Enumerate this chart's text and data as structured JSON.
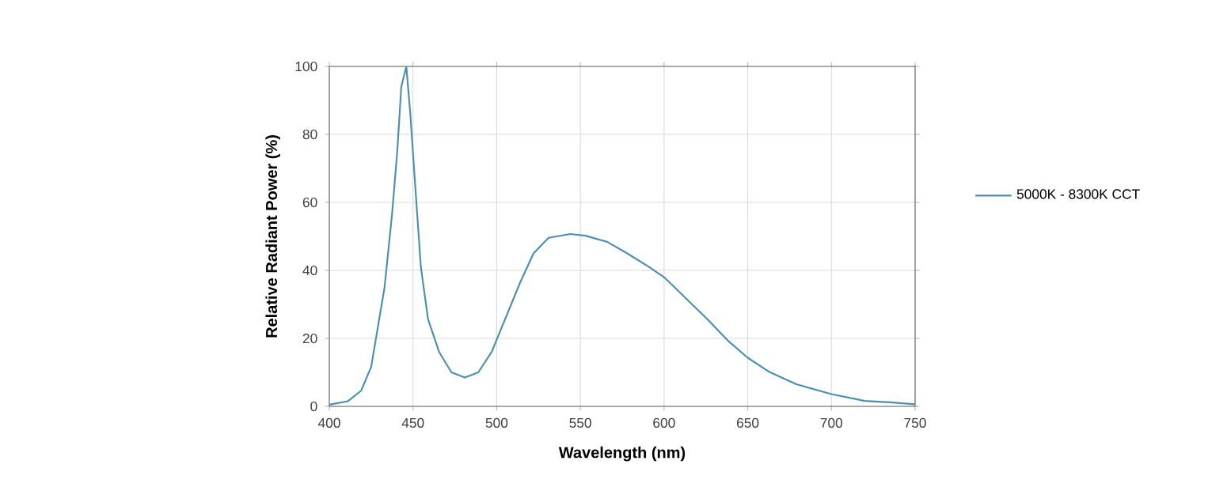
{
  "chart_data": {
    "type": "line",
    "xlabel": "Wavelength (nm)",
    "ylabel": "Relative Radiant Power (%)",
    "x": [
      400,
      411,
      419,
      425,
      433,
      437.5,
      440.6,
      443,
      446,
      448.4,
      451.6,
      454.7,
      459,
      465.6,
      473,
      481,
      489,
      497,
      505,
      514,
      522,
      531,
      544,
      553,
      566,
      578,
      591,
      600,
      613,
      626,
      638,
      650,
      663,
      679,
      700,
      720,
      735,
      750
    ],
    "series": [
      {
        "name": "5000K - 8300K CCT",
        "color": "#4a8fb0",
        "values": [
          0.5,
          1.5,
          4.6,
          11.6,
          35,
          56.6,
          75,
          94,
          100,
          86,
          63,
          41,
          25.6,
          16,
          10,
          8.5,
          10,
          16,
          25.6,
          36.4,
          45,
          49.6,
          50.7,
          50.2,
          48.4,
          45,
          41,
          38,
          31.8,
          25.6,
          19.4,
          14.3,
          10.1,
          6.5,
          3.6,
          1.6,
          1.2,
          0.6
        ]
      }
    ],
    "xlim": [
      400,
      750
    ],
    "ylim": [
      0,
      100
    ],
    "xticks": [
      400,
      450,
      500,
      550,
      600,
      650,
      700,
      750
    ],
    "yticks": [
      0,
      20,
      40,
      60,
      80,
      100
    ],
    "grid": true,
    "legend": "right",
    "marker": "none",
    "line_style": "solid"
  }
}
